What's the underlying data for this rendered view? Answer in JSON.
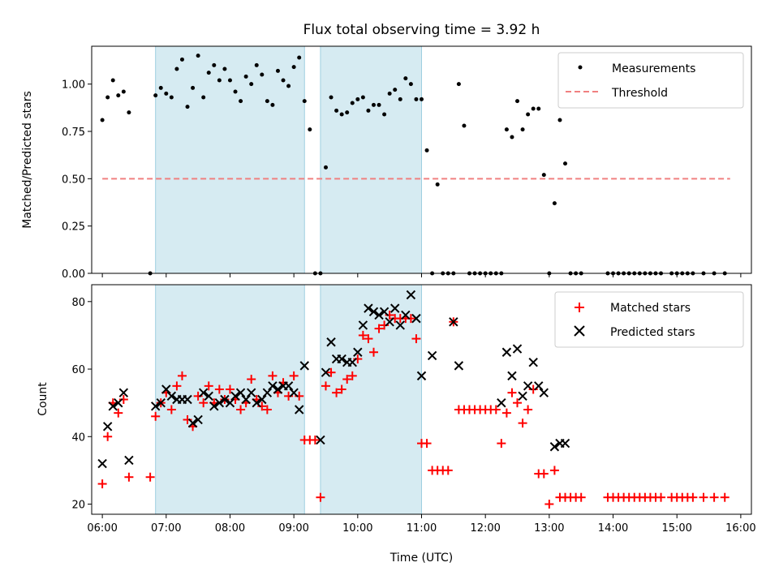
{
  "title": "Flux total observing time = 3.92 h",
  "chart_data": [
    {
      "type": "scatter",
      "panel": "top",
      "ylabel": "Matched/Predicted stars",
      "xlabel": "",
      "ylim": [
        0,
        1.2
      ],
      "yticks": [
        "0.00",
        "0.25",
        "0.50",
        "0.75",
        "1.00"
      ],
      "xlim": [
        "05:50",
        "16:10"
      ],
      "grid": false,
      "legend_position": "upper right",
      "shaded_intervals": [
        [
          "06:50",
          "09:10"
        ],
        [
          "09:25",
          "11:00"
        ]
      ],
      "series": [
        {
          "name": "Measurements",
          "marker": "dot",
          "color": "#000000",
          "x": [
            "06:00",
            "06:05",
            "06:10",
            "06:15",
            "06:20",
            "06:25",
            "06:45",
            "06:50",
            "06:55",
            "07:00",
            "07:05",
            "07:10",
            "07:15",
            "07:20",
            "07:25",
            "07:30",
            "07:35",
            "07:40",
            "07:45",
            "07:50",
            "07:55",
            "08:00",
            "08:05",
            "08:10",
            "08:15",
            "08:20",
            "08:25",
            "08:30",
            "08:35",
            "08:40",
            "08:45",
            "08:50",
            "08:55",
            "09:00",
            "09:05",
            "09:10",
            "09:15",
            "09:20",
            "09:25",
            "09:30",
            "09:35",
            "09:40",
            "09:45",
            "09:50",
            "09:55",
            "10:00",
            "10:05",
            "10:10",
            "10:15",
            "10:20",
            "10:25",
            "10:30",
            "10:35",
            "10:40",
            "10:45",
            "10:50",
            "10:55",
            "11:00",
            "11:05",
            "11:10",
            "11:15",
            "11:20",
            "11:25",
            "11:30",
            "11:35",
            "11:40",
            "11:45",
            "11:50",
            "11:55",
            "12:00",
            "12:05",
            "12:10",
            "12:15",
            "12:20",
            "12:25",
            "12:30",
            "12:35",
            "12:40",
            "12:45",
            "12:50",
            "12:55",
            "13:00",
            "13:05",
            "13:10",
            "13:15",
            "13:20",
            "13:25",
            "13:30",
            "13:55",
            "14:00",
            "14:05",
            "14:10",
            "14:15",
            "14:20",
            "14:25",
            "14:30",
            "14:35",
            "14:40",
            "14:45",
            "14:55",
            "15:00",
            "15:05",
            "15:10",
            "15:15",
            "15:25",
            "15:35",
            "15:45"
          ],
          "y": [
            0.81,
            0.93,
            1.02,
            0.94,
            0.96,
            0.85,
            0.0,
            0.94,
            0.98,
            0.95,
            0.93,
            1.08,
            1.13,
            0.88,
            0.98,
            1.15,
            0.93,
            1.06,
            1.1,
            1.02,
            1.08,
            1.02,
            0.96,
            0.91,
            1.04,
            1.0,
            1.1,
            1.05,
            0.91,
            0.89,
            1.07,
            1.02,
            0.99,
            1.09,
            1.14,
            0.91,
            0.76,
            0.0,
            0.0,
            0.56,
            0.93,
            0.86,
            0.84,
            0.85,
            0.9,
            0.92,
            0.93,
            0.86,
            0.89,
            0.89,
            0.84,
            0.95,
            0.97,
            0.92,
            1.03,
            1.0,
            0.92,
            0.92,
            0.65,
            0.0,
            0.47,
            0.0,
            0.0,
            0.0,
            1.0,
            0.78,
            0.0,
            0.0,
            0.0,
            0.0,
            0.0,
            0.0,
            0.0,
            0.76,
            0.72,
            0.91,
            0.76,
            0.84,
            0.87,
            0.87,
            0.52,
            0.0,
            0.37,
            0.81,
            0.58,
            0.0,
            0.0,
            0.0,
            0.0,
            0.0,
            0.0,
            0.0,
            0.0,
            0.0,
            0.0,
            0.0,
            0.0,
            0.0,
            0.0,
            0.0,
            0.0,
            0.0,
            0.0,
            0.0,
            0.0,
            0.0,
            0.0
          ]
        },
        {
          "name": "Threshold",
          "marker": "dashed-line",
          "color": "#f08080",
          "x": [
            "06:00",
            "15:50"
          ],
          "y": [
            0.5,
            0.5
          ]
        }
      ]
    },
    {
      "type": "scatter",
      "panel": "bottom",
      "xlabel": "Time (UTC)",
      "ylabel": "Count",
      "ylim": [
        17,
        85
      ],
      "yticks": [
        "20",
        "40",
        "60",
        "80"
      ],
      "xlim": [
        "05:50",
        "16:10"
      ],
      "xticks": [
        "06:00",
        "07:00",
        "08:00",
        "09:00",
        "10:00",
        "11:00",
        "12:00",
        "13:00",
        "14:00",
        "15:00",
        "16:00"
      ],
      "grid": false,
      "legend_position": "upper right",
      "shaded_intervals": [
        [
          "06:50",
          "09:10"
        ],
        [
          "09:25",
          "11:00"
        ]
      ],
      "series": [
        {
          "name": "Matched stars",
          "marker": "plus",
          "color": "#ff0000",
          "x": [
            "06:00",
            "06:05",
            "06:10",
            "06:15",
            "06:20",
            "06:25",
            "06:45",
            "06:50",
            "06:55",
            "07:00",
            "07:05",
            "07:10",
            "07:15",
            "07:20",
            "07:25",
            "07:30",
            "07:35",
            "07:40",
            "07:45",
            "07:50",
            "07:55",
            "08:00",
            "08:05",
            "08:10",
            "08:15",
            "08:20",
            "08:25",
            "08:30",
            "08:35",
            "08:40",
            "08:45",
            "08:50",
            "08:55",
            "09:00",
            "09:05",
            "09:10",
            "09:15",
            "09:20",
            "09:25",
            "09:30",
            "09:35",
            "09:40",
            "09:45",
            "09:50",
            "09:55",
            "10:00",
            "10:05",
            "10:10",
            "10:15",
            "10:20",
            "10:25",
            "10:30",
            "10:35",
            "10:40",
            "10:45",
            "10:50",
            "10:55",
            "11:00",
            "11:05",
            "11:10",
            "11:15",
            "11:20",
            "11:25",
            "11:30",
            "11:35",
            "11:40",
            "11:45",
            "11:50",
            "11:55",
            "12:00",
            "12:05",
            "12:10",
            "12:15",
            "12:20",
            "12:25",
            "12:30",
            "12:35",
            "12:40",
            "12:45",
            "12:50",
            "12:55",
            "13:00",
            "13:05",
            "13:10",
            "13:15",
            "13:20",
            "13:25",
            "13:30",
            "13:55",
            "14:00",
            "14:05",
            "14:10",
            "14:15",
            "14:20",
            "14:25",
            "14:30",
            "14:35",
            "14:40",
            "14:45",
            "14:55",
            "15:00",
            "15:05",
            "15:10",
            "15:15",
            "15:25",
            "15:35",
            "15:45"
          ],
          "y": [
            26,
            40,
            50,
            47,
            51,
            28,
            28,
            46,
            50,
            53,
            48,
            55,
            58,
            45,
            43,
            52,
            50,
            55,
            50,
            54,
            51,
            54,
            51,
            48,
            50,
            57,
            51,
            49,
            48,
            58,
            53,
            56,
            52,
            58,
            52,
            39,
            39,
            39,
            22,
            55,
            59,
            53,
            54,
            57,
            58,
            63,
            70,
            69,
            65,
            72,
            73,
            76,
            75,
            75,
            75,
            75,
            69,
            38,
            38,
            30,
            30,
            30,
            30,
            74,
            48,
            48,
            48,
            48,
            48,
            48,
            48,
            48,
            38,
            47,
            53,
            50,
            44,
            48,
            54,
            29,
            29,
            20,
            30,
            22,
            22,
            22,
            22,
            22,
            22,
            22,
            22,
            22,
            22,
            22,
            22,
            22,
            22,
            22,
            22,
            22,
            22,
            22,
            22,
            22,
            22,
            22,
            22
          ]
        },
        {
          "name": "Predicted stars",
          "marker": "x",
          "color": "#000000",
          "x": [
            "06:00",
            "06:05",
            "06:10",
            "06:15",
            "06:20",
            "06:25",
            "06:50",
            "06:55",
            "07:00",
            "07:05",
            "07:10",
            "07:15",
            "07:20",
            "07:25",
            "07:30",
            "07:35",
            "07:40",
            "07:45",
            "07:50",
            "07:55",
            "08:00",
            "08:05",
            "08:10",
            "08:15",
            "08:20",
            "08:25",
            "08:30",
            "08:35",
            "08:40",
            "08:45",
            "08:50",
            "08:55",
            "09:00",
            "09:05",
            "09:10",
            "09:25",
            "09:30",
            "09:35",
            "09:40",
            "09:45",
            "09:50",
            "09:55",
            "10:00",
            "10:05",
            "10:10",
            "10:15",
            "10:20",
            "10:25",
            "10:30",
            "10:35",
            "10:40",
            "10:45",
            "10:50",
            "10:55",
            "11:00",
            "11:10",
            "11:30",
            "11:35",
            "12:15",
            "12:20",
            "12:25",
            "12:30",
            "12:35",
            "12:40",
            "12:45",
            "12:50",
            "12:55",
            "13:05",
            "13:10",
            "13:15"
          ],
          "y": [
            32,
            43,
            49,
            50,
            53,
            33,
            49,
            50,
            54,
            52,
            51,
            51,
            51,
            44,
            45,
            53,
            52,
            49,
            50,
            51,
            50,
            52,
            53,
            51,
            53,
            50,
            51,
            53,
            55,
            54,
            55,
            55,
            53,
            48,
            61,
            39,
            59,
            68,
            63,
            63,
            62,
            62,
            65,
            73,
            78,
            77,
            76,
            77,
            74,
            78,
            73,
            76,
            82,
            75,
            58,
            64,
            74,
            61,
            50,
            65,
            58,
            66,
            52,
            55,
            62,
            55,
            53,
            37,
            38,
            38
          ]
        }
      ]
    }
  ]
}
